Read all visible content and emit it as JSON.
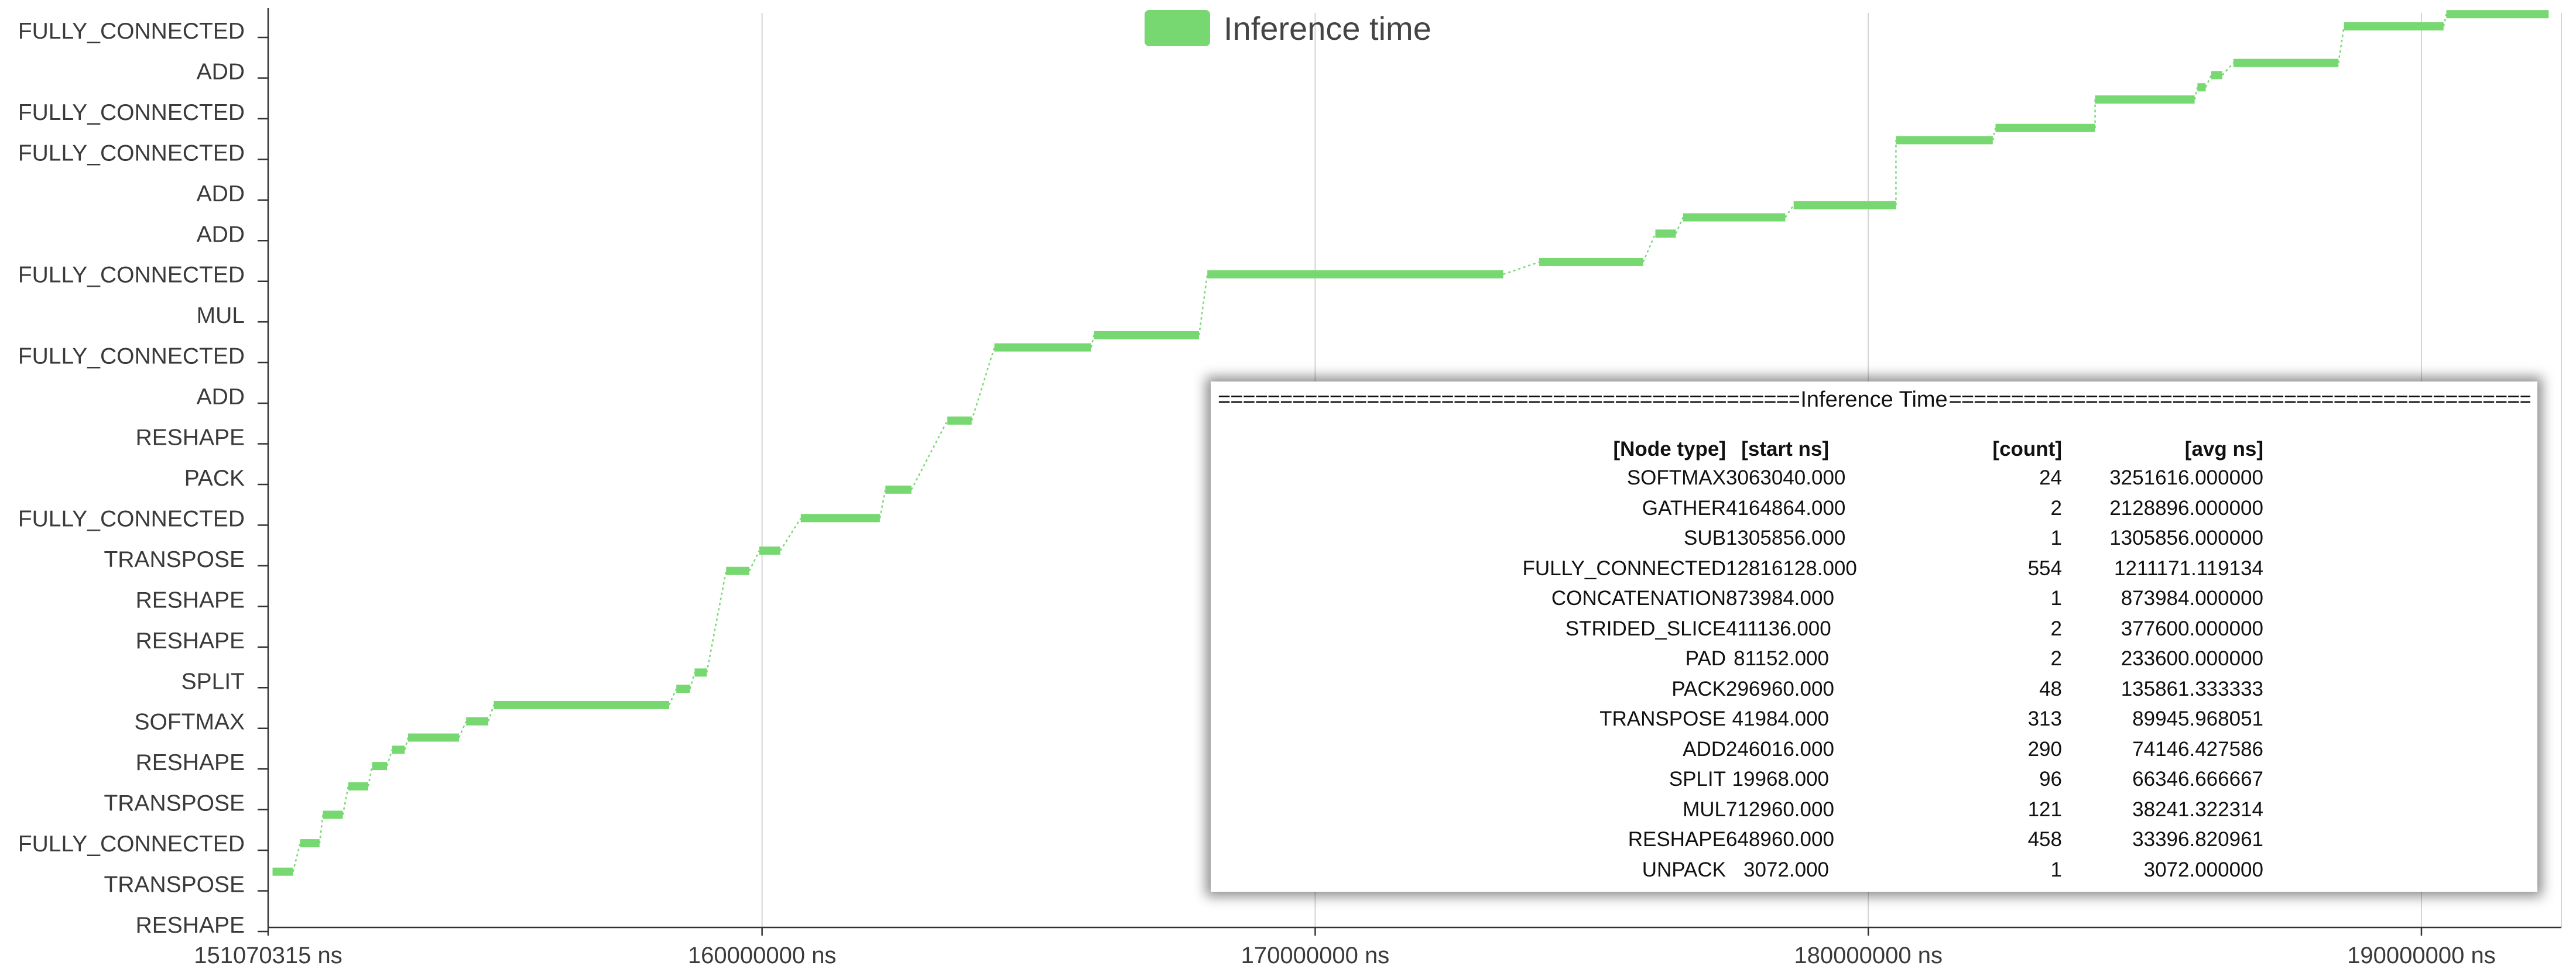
{
  "chart_data": {
    "type": "bar",
    "subtype": "gantt-timeline",
    "legend": {
      "label": "Inference time",
      "position": "top-center",
      "color": "#77d872"
    },
    "grid": {
      "vertical": true,
      "horizontal": false
    },
    "x_unit": "ns",
    "xlim": [
      151070315,
      192530000
    ],
    "x_ticks": [
      {
        "value": 151070315,
        "label": "151070315 ns"
      },
      {
        "value": 160000000,
        "label": "160000000 ns"
      },
      {
        "value": 170000000,
        "label": "170000000 ns"
      },
      {
        "value": 180000000,
        "label": "180000000 ns"
      },
      {
        "value": 190000000,
        "label": "190000000 ns"
      }
    ],
    "y_categories": [
      "FULLY_CONNECTED",
      "ADD",
      "FULLY_CONNECTED",
      "FULLY_CONNECTED",
      "ADD",
      "ADD",
      "FULLY_CONNECTED",
      "MUL",
      "FULLY_CONNECTED",
      "ADD",
      "RESHAPE",
      "PACK",
      "FULLY_CONNECTED",
      "TRANSPOSE",
      "RESHAPE",
      "RESHAPE",
      "SPLIT",
      "SOFTMAX",
      "RESHAPE",
      "TRANSPOSE",
      "FULLY_CONNECTED",
      "TRANSPOSE",
      "RESHAPE"
    ],
    "segments": [
      {
        "start": 151150000,
        "end": 151520000,
        "level": 1.3
      },
      {
        "start": 151650000,
        "end": 152000000,
        "level": 2.0
      },
      {
        "start": 152060000,
        "end": 152420000,
        "level": 2.7
      },
      {
        "start": 152520000,
        "end": 152880000,
        "level": 3.4
      },
      {
        "start": 152950000,
        "end": 153220000,
        "level": 3.9
      },
      {
        "start": 153310000,
        "end": 153540000,
        "level": 4.3
      },
      {
        "start": 153600000,
        "end": 154520000,
        "level": 4.6
      },
      {
        "start": 154650000,
        "end": 155050000,
        "level": 5.0
      },
      {
        "start": 155150000,
        "end": 158320000,
        "level": 5.4
      },
      {
        "start": 158450000,
        "end": 158700000,
        "level": 5.8
      },
      {
        "start": 158780000,
        "end": 159000000,
        "level": 6.2
      },
      {
        "start": 159350000,
        "end": 159770000,
        "level": 8.7
      },
      {
        "start": 159950000,
        "end": 160330000,
        "level": 9.2
      },
      {
        "start": 160700000,
        "end": 162130000,
        "level": 10.0
      },
      {
        "start": 162230000,
        "end": 162700000,
        "level": 10.7
      },
      {
        "start": 163350000,
        "end": 163790000,
        "level": 12.4
      },
      {
        "start": 164200000,
        "end": 165950000,
        "level": 14.2
      },
      {
        "start": 166000000,
        "end": 167900000,
        "level": 14.5
      },
      {
        "start": 168050000,
        "end": 173400000,
        "level": 16.0
      },
      {
        "start": 174050000,
        "end": 175930000,
        "level": 16.3
      },
      {
        "start": 176150000,
        "end": 176520000,
        "level": 17.0
      },
      {
        "start": 176650000,
        "end": 178500000,
        "level": 17.4
      },
      {
        "start": 178650000,
        "end": 180500000,
        "level": 17.7
      },
      {
        "start": 180500000,
        "end": 182250000,
        "level": 19.3
      },
      {
        "start": 182300000,
        "end": 184100000,
        "level": 19.6
      },
      {
        "start": 184100000,
        "end": 185900000,
        "level": 20.3
      },
      {
        "start": 185950000,
        "end": 186100000,
        "level": 20.6
      },
      {
        "start": 186200000,
        "end": 186400000,
        "level": 20.9
      },
      {
        "start": 186600000,
        "end": 188500000,
        "level": 21.2
      },
      {
        "start": 188600000,
        "end": 190400000,
        "level": 22.1
      },
      {
        "start": 190450000,
        "end": 192300000,
        "level": 22.4
      }
    ],
    "table": {
      "title": "Inference Time",
      "rule_char": "=",
      "columns": [
        "[Node type]",
        "[start ns]",
        "[count]",
        "[avg ns]"
      ],
      "rows": [
        [
          "SOFTMAX",
          "3063040.000",
          "24",
          "3251616.000000"
        ],
        [
          "GATHER",
          "4164864.000",
          "2",
          "2128896.000000"
        ],
        [
          "SUB",
          "1305856.000",
          "1",
          "1305856.000000"
        ],
        [
          "FULLY_CONNECTED",
          "12816128.000",
          "554",
          "1211171.119134"
        ],
        [
          "CONCATENATION",
          "873984.000",
          "1",
          "873984.000000"
        ],
        [
          "STRIDED_SLICE",
          "411136.000",
          "2",
          "377600.000000"
        ],
        [
          "PAD",
          "81152.000",
          "2",
          "233600.000000"
        ],
        [
          "PACK",
          "296960.000",
          "48",
          "135861.333333"
        ],
        [
          "TRANSPOSE",
          "41984.000",
          "313",
          "89945.968051"
        ],
        [
          "ADD",
          "246016.000",
          "290",
          "74146.427586"
        ],
        [
          "SPLIT",
          "19968.000",
          "96",
          "66346.666667"
        ],
        [
          "MUL",
          "712960.000",
          "121",
          "38241.322314"
        ],
        [
          "RESHAPE",
          "648960.000",
          "458",
          "33396.820961"
        ],
        [
          "UNPACK",
          "3072.000",
          "1",
          "3072.000000"
        ]
      ]
    }
  }
}
